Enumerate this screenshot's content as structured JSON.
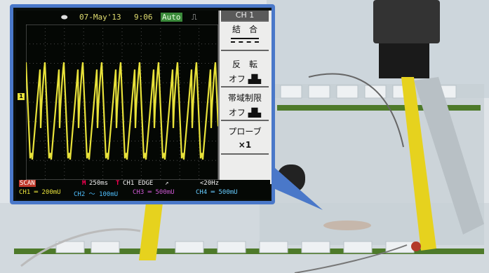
{
  "scope": {
    "date": "07-May'13",
    "time": "9:06",
    "mode_badge": "Auto",
    "channel": "CH 1",
    "menu": {
      "coupling_label": "結　合",
      "coupling_value": "———\n- - - - -",
      "invert_label": "反　転",
      "invert_value": "オフ",
      "bw_limit_label": "帯域制限",
      "bw_limit_value": "オフ",
      "probe_label": "プローブ",
      "probe_value": "×1"
    },
    "status": {
      "scan": "SCAN",
      "timebase": "250ms",
      "trigger": "CH1 EDGE",
      "trigger_slope": "↗",
      "freq": "<20Hz",
      "ch1": "CH1 ═ 200mU",
      "ch2": "CH2 〜 100mU",
      "ch3": "CH3 ═ 500mU",
      "ch4": "CH4 ═ 500mU"
    },
    "ch1_marker": "1"
  },
  "colors": {
    "inset_border": "#4a78c9",
    "trace": "#e8e23a",
    "ch2": "#4fc0ff",
    "ch3": "#d05ad6",
    "ch4": "#66ccff"
  }
}
